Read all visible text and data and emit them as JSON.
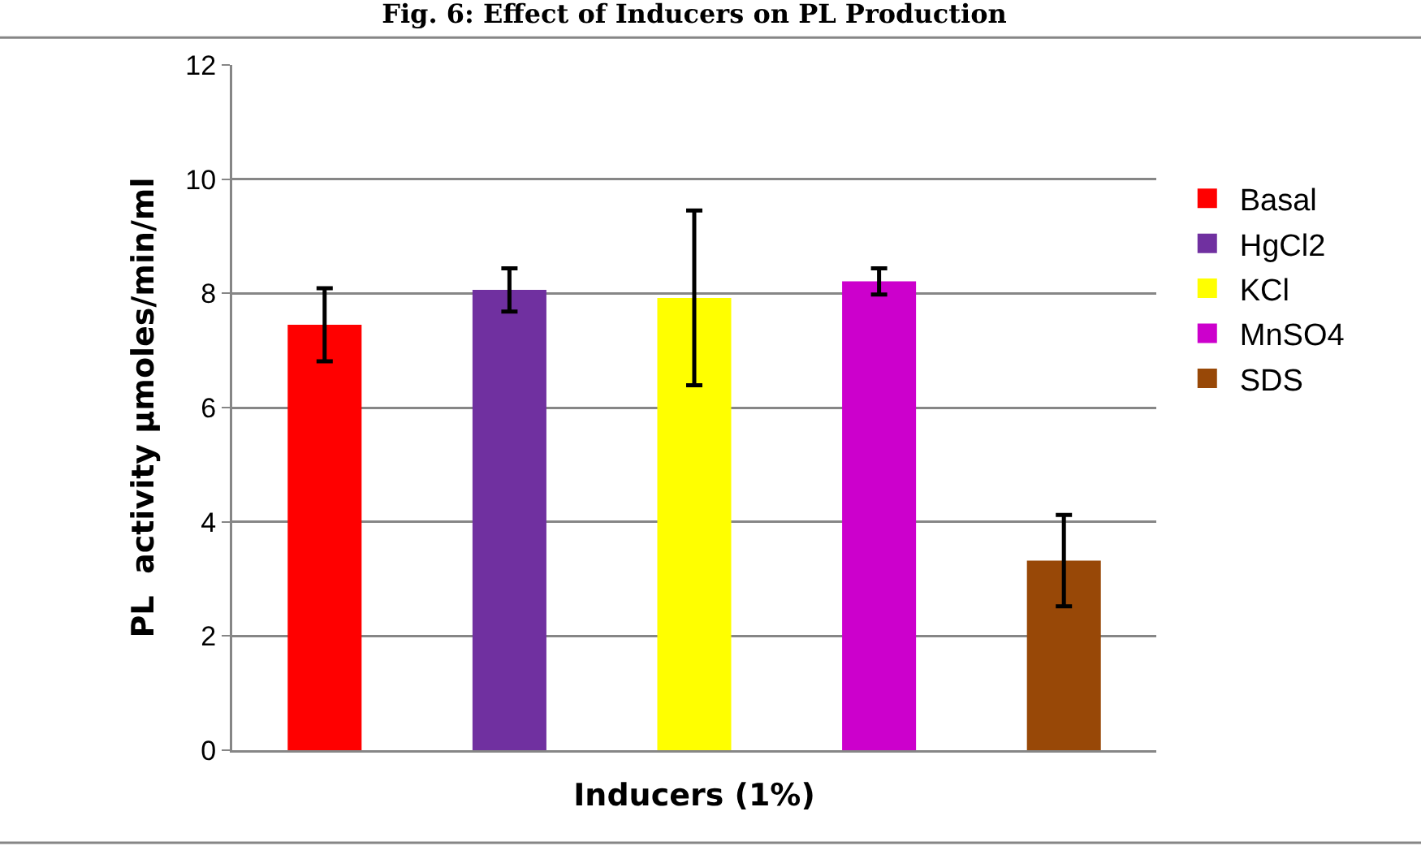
{
  "chart_data": {
    "type": "bar",
    "title": "Fig. 6: Effect of Inducers on PL Production",
    "xlabel": "Inducers (1%)",
    "ylabel": "PL  activity µmoles/min/ml",
    "categories": [
      null,
      null,
      null,
      null,
      null
    ],
    "series": [
      {
        "name": "Basal",
        "color": "#ff0000",
        "values": [
          7.45,
          null,
          null,
          null,
          null
        ],
        "errors": [
          0.64,
          null,
          null,
          null,
          null
        ]
      },
      {
        "name": "HgCl2",
        "color": "#7030a0",
        "values": [
          null,
          8.06,
          null,
          null,
          null
        ],
        "errors": [
          null,
          0.38,
          null,
          null,
          null
        ]
      },
      {
        "name": "KCl",
        "color": "#ffff00",
        "values": [
          null,
          null,
          7.92,
          null,
          null
        ],
        "errors": [
          null,
          null,
          1.53,
          null,
          null
        ]
      },
      {
        "name": "MnSO4",
        "color": "#cc00cc",
        "values": [
          null,
          null,
          null,
          8.21,
          null
        ],
        "errors": [
          null,
          null,
          null,
          0.23,
          null
        ]
      },
      {
        "name": "SDS",
        "color": "#984807",
        "values": [
          null,
          null,
          null,
          null,
          3.32
        ],
        "errors": [
          null,
          null,
          null,
          null,
          0.8
        ]
      }
    ],
    "ylim": [
      0,
      12
    ],
    "yticks": [
      0,
      2,
      4,
      6,
      8,
      10,
      12
    ],
    "grid": "y",
    "legend": "right",
    "tick_labels": "y"
  }
}
